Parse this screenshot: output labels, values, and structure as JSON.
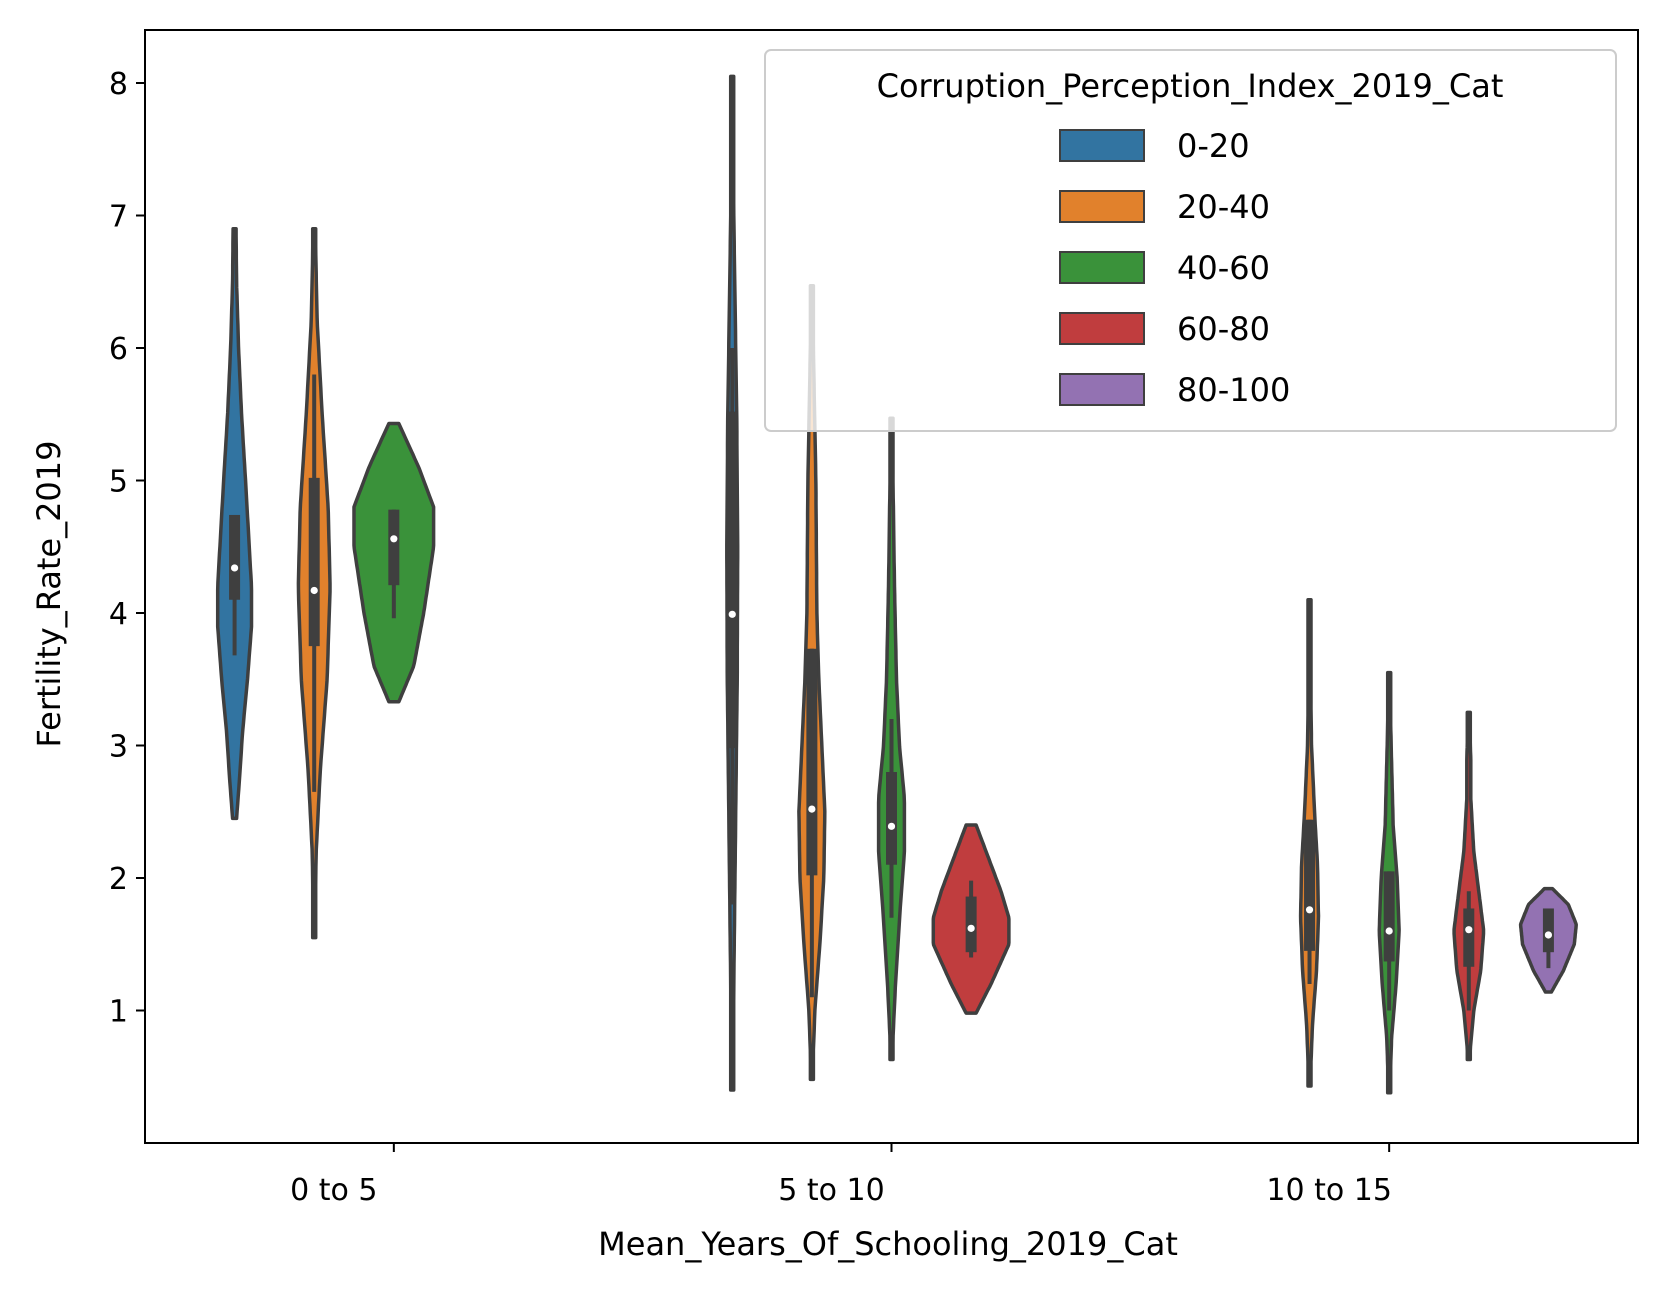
{
  "chart_data": {
    "type": "violin",
    "xlabel": "Mean_Years_Of_Schooling_2019_Cat",
    "ylabel": "Fertility_Rate_2019",
    "categories": [
      "0 to 5",
      "5 to 10",
      "10 to 15"
    ],
    "ylim": [
      0.0,
      8.4
    ],
    "yticks": [
      1,
      2,
      3,
      4,
      5,
      6,
      7,
      8
    ],
    "legend": {
      "title": "Corruption_Perception_Index_2019_Cat",
      "position": "top-right",
      "entries": [
        "0-20",
        "20-40",
        "40-60",
        "60-80",
        "80-100"
      ]
    },
    "colors": {
      "0-20": "#3274a1",
      "20-40": "#e1812c",
      "40-60": "#3a923a",
      "60-80": "#c03d3e",
      "80-100": "#9372b2"
    },
    "series": [
      {
        "name": "0-20",
        "violins": [
          {
            "category": "0 to 5",
            "min": 2.45,
            "max": 6.9,
            "q1": 4.1,
            "median": 4.34,
            "q3": 4.74,
            "wlo": 3.68,
            "whi": 4.74,
            "profile": [
              [
                2.45,
                0.02
              ],
              [
                2.75,
                0.05
              ],
              [
                3.1,
                0.08
              ],
              [
                3.5,
                0.13
              ],
              [
                3.9,
                0.17
              ],
              [
                4.2,
                0.17
              ],
              [
                4.6,
                0.14
              ],
              [
                5.0,
                0.11
              ],
              [
                5.5,
                0.07
              ],
              [
                6.0,
                0.04
              ],
              [
                6.5,
                0.02
              ],
              [
                6.9,
                0.015
              ]
            ]
          },
          {
            "category": "5 to 10",
            "min": 0.4,
            "max": 8.05,
            "q1": 2.98,
            "median": 3.99,
            "q3": 5.52,
            "wlo": 1.8,
            "whi": 6.0,
            "profile": [
              [
                0.4,
                0.005
              ],
              [
                1.5,
                0.02
              ],
              [
                2.5,
                0.035
              ],
              [
                3.5,
                0.05
              ],
              [
                4.5,
                0.055
              ],
              [
                5.5,
                0.045
              ],
              [
                6.5,
                0.025
              ],
              [
                7.3,
                0.01
              ],
              [
                8.05,
                0.003
              ]
            ]
          }
        ]
      },
      {
        "name": "20-40",
        "violins": [
          {
            "category": "0 to 5",
            "min": 1.55,
            "max": 6.9,
            "q1": 3.75,
            "median": 4.17,
            "q3": 5.02,
            "wlo": 2.65,
            "whi": 5.8,
            "profile": [
              [
                1.55,
                0.005
              ],
              [
                2.2,
                0.02
              ],
              [
                2.8,
                0.06
              ],
              [
                3.5,
                0.13
              ],
              [
                4.2,
                0.16
              ],
              [
                4.8,
                0.14
              ],
              [
                5.5,
                0.08
              ],
              [
                6.2,
                0.03
              ],
              [
                6.9,
                0.01
              ]
            ]
          },
          {
            "category": "5 to 10",
            "min": 0.48,
            "max": 6.47,
            "q1": 2.02,
            "median": 2.52,
            "q3": 3.73,
            "wlo": 1.1,
            "whi": 3.73,
            "profile": [
              [
                0.48,
                0.005
              ],
              [
                1.0,
                0.03
              ],
              [
                1.5,
                0.08
              ],
              [
                2.0,
                0.12
              ],
              [
                2.5,
                0.13
              ],
              [
                3.0,
                0.1
              ],
              [
                3.5,
                0.07
              ],
              [
                4.0,
                0.05
              ],
              [
                5.0,
                0.04
              ],
              [
                5.8,
                0.02
              ],
              [
                6.47,
                0.005
              ]
            ]
          },
          {
            "category": "10 to 15",
            "min": 0.43,
            "max": 4.1,
            "q1": 1.45,
            "median": 1.76,
            "q3": 2.44,
            "wlo": 1.2,
            "whi": 2.44,
            "profile": [
              [
                0.43,
                0.005
              ],
              [
                0.9,
                0.03
              ],
              [
                1.3,
                0.07
              ],
              [
                1.7,
                0.09
              ],
              [
                2.1,
                0.08
              ],
              [
                2.5,
                0.05
              ],
              [
                3.0,
                0.02
              ],
              [
                3.5,
                0.01
              ],
              [
                4.1,
                0.005
              ]
            ]
          }
        ]
      },
      {
        "name": "40-60",
        "violins": [
          {
            "category": "0 to 5",
            "min": 3.33,
            "max": 5.43,
            "q1": 4.21,
            "median": 4.56,
            "q3": 4.78,
            "wlo": 3.96,
            "whi": 4.78,
            "profile": [
              [
                3.33,
                0.05
              ],
              [
                3.6,
                0.2
              ],
              [
                4.0,
                0.3
              ],
              [
                4.5,
                0.4
              ],
              [
                4.8,
                0.4
              ],
              [
                5.1,
                0.25
              ],
              [
                5.43,
                0.05
              ]
            ]
          },
          {
            "category": "5 to 10",
            "min": 0.63,
            "max": 5.47,
            "q1": 2.1,
            "median": 2.39,
            "q3": 2.8,
            "wlo": 1.7,
            "whi": 3.2,
            "profile": [
              [
                0.63,
                0.005
              ],
              [
                1.2,
                0.04
              ],
              [
                1.8,
                0.09
              ],
              [
                2.2,
                0.13
              ],
              [
                2.6,
                0.13
              ],
              [
                3.0,
                0.08
              ],
              [
                3.5,
                0.05
              ],
              [
                4.2,
                0.03
              ],
              [
                5.0,
                0.015
              ],
              [
                5.47,
                0.005
              ]
            ]
          },
          {
            "category": "10 to 15",
            "min": 0.38,
            "max": 3.55,
            "q1": 1.37,
            "median": 1.6,
            "q3": 2.05,
            "wlo": 1.0,
            "whi": 2.05,
            "profile": [
              [
                0.38,
                0.005
              ],
              [
                0.8,
                0.025
              ],
              [
                1.2,
                0.07
              ],
              [
                1.6,
                0.1
              ],
              [
                2.0,
                0.08
              ],
              [
                2.4,
                0.04
              ],
              [
                3.0,
                0.02
              ],
              [
                3.55,
                0.005
              ]
            ]
          }
        ]
      },
      {
        "name": "60-80",
        "violins": [
          {
            "category": "5 to 10",
            "min": 0.98,
            "max": 2.4,
            "q1": 1.44,
            "median": 1.62,
            "q3": 1.86,
            "wlo": 1.4,
            "whi": 1.98,
            "profile": [
              [
                0.98,
                0.05
              ],
              [
                1.2,
                0.2
              ],
              [
                1.5,
                0.38
              ],
              [
                1.7,
                0.38
              ],
              [
                1.9,
                0.3
              ],
              [
                2.2,
                0.15
              ],
              [
                2.4,
                0.05
              ]
            ]
          },
          {
            "category": "10 to 15",
            "min": 0.63,
            "max": 3.25,
            "q1": 1.33,
            "median": 1.61,
            "q3": 1.77,
            "wlo": 1.0,
            "whi": 1.9,
            "profile": [
              [
                0.63,
                0.005
              ],
              [
                1.0,
                0.05
              ],
              [
                1.3,
                0.12
              ],
              [
                1.6,
                0.15
              ],
              [
                1.9,
                0.1
              ],
              [
                2.2,
                0.05
              ],
              [
                2.6,
                0.02
              ],
              [
                2.9,
                0.02
              ],
              [
                3.25,
                0.005
              ]
            ]
          }
        ]
      },
      {
        "name": "80-100",
        "violins": [
          {
            "category": "10 to 15",
            "min": 1.14,
            "max": 1.92,
            "q1": 1.44,
            "median": 1.57,
            "q3": 1.77,
            "wlo": 1.32,
            "whi": 1.77,
            "profile": [
              [
                1.14,
                0.03
              ],
              [
                1.3,
                0.15
              ],
              [
                1.5,
                0.26
              ],
              [
                1.65,
                0.28
              ],
              [
                1.8,
                0.2
              ],
              [
                1.92,
                0.04
              ]
            ]
          }
        ]
      }
    ]
  }
}
